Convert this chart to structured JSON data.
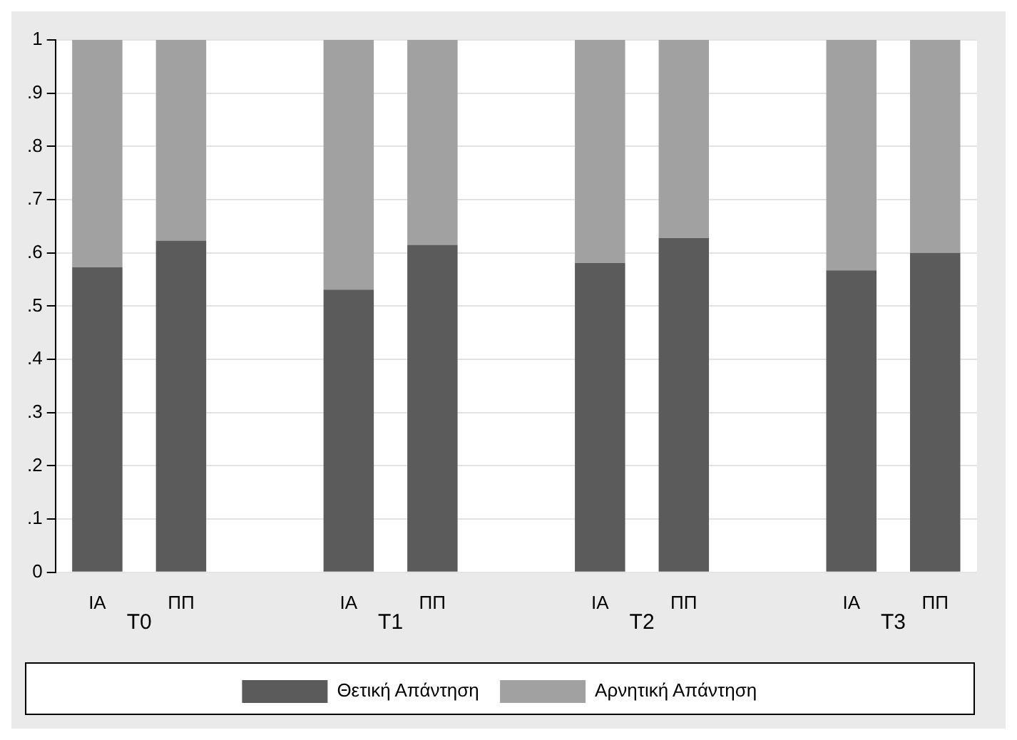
{
  "chart_data": {
    "type": "bar",
    "stacked": true,
    "categories": [
      "IA",
      "ΠΠ",
      null,
      "IA",
      "ΠΠ",
      null,
      "IA",
      "ΠΠ",
      null,
      "IA",
      "ΠΠ"
    ],
    "series": [
      {
        "name": "Θετική Απάντηση",
        "color": "#5b5b5b",
        "values": [
          0.573,
          0.623,
          null,
          0.531,
          0.615,
          null,
          0.581,
          0.628,
          null,
          0.567,
          0.6
        ]
      },
      {
        "name": "Αρνητική Απάντηση",
        "color": "#a1a1a1",
        "values": [
          0.427,
          0.377,
          null,
          0.469,
          0.385,
          null,
          0.419,
          0.372,
          null,
          0.433,
          0.4
        ]
      }
    ],
    "ylim": [
      0,
      1
    ],
    "yticks": [
      0,
      {
        "value": 0.1,
        "label": ".1"
      },
      {
        "value": 0.2,
        "label": ".2"
      },
      {
        "value": 0.3,
        "label": ".3"
      },
      {
        "value": 0.4,
        "label": ".4"
      },
      {
        "value": 0.5,
        "label": ".5"
      },
      {
        "value": 0.6,
        "label": ".6"
      },
      {
        "value": 0.7,
        "label": ".7"
      },
      {
        "value": 0.8,
        "label": ".8"
      },
      {
        "value": 0.9,
        "label": ".9"
      },
      1
    ],
    "grid": "y",
    "legend": "bottom",
    "annotations": [
      "T0",
      "T1",
      "T2",
      "T3"
    ]
  }
}
